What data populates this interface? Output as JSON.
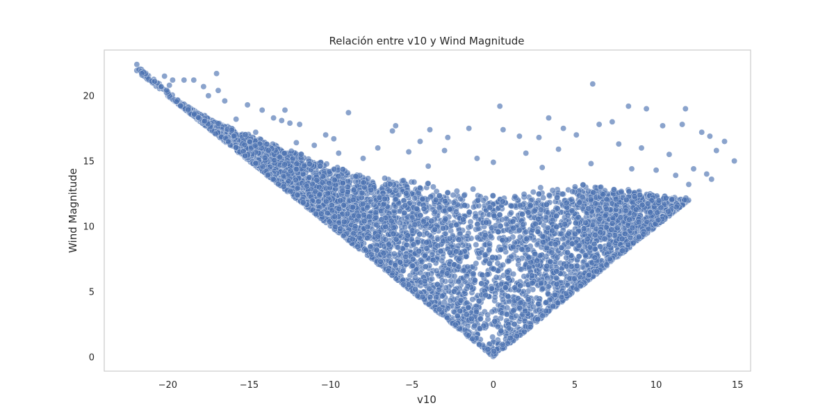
{
  "chart_data": {
    "type": "scatter",
    "title": "Relación entre v10 y Wind Magnitude",
    "xlabel": "v10",
    "ylabel": "Wind Magnitude",
    "xlim": [
      -23.9,
      15.8
    ],
    "ylim": [
      -1.1,
      23.5
    ],
    "xticks": [
      -20,
      -15,
      -10,
      -5,
      0,
      5,
      10,
      15
    ],
    "xtick_labels": [
      "−20",
      "−15",
      "−10",
      "−5",
      "0",
      "5",
      "10",
      "15"
    ],
    "yticks": [
      0,
      5,
      10,
      15,
      20
    ],
    "ytick_labels": [
      "0",
      "5",
      "10",
      "15",
      "20"
    ],
    "grid": false,
    "marker_color": "#4c72b0",
    "marker_alpha": 0.65,
    "marker_edge_color": "#ffffff",
    "series": [
      {
        "points": [
          [
            -21.9,
            22.4
          ],
          [
            -20.2,
            21.5
          ],
          [
            -17.0,
            21.7
          ],
          [
            -20.8,
            21.1
          ],
          [
            -19.7,
            21.2
          ],
          [
            -19.0,
            21.2
          ],
          [
            -18.4,
            21.2
          ],
          [
            -20.4,
            20.7
          ],
          [
            -19.9,
            20.8
          ],
          [
            -17.8,
            20.7
          ],
          [
            -16.9,
            20.4
          ],
          [
            -17.5,
            20.0
          ],
          [
            -16.5,
            19.6
          ],
          [
            -15.1,
            19.3
          ],
          [
            -14.2,
            18.9
          ],
          [
            -12.8,
            18.9
          ],
          [
            -13.5,
            18.3
          ],
          [
            -13.0,
            18.1
          ],
          [
            -12.5,
            17.9
          ],
          [
            -11.9,
            17.8
          ],
          [
            -8.9,
            18.7
          ],
          [
            -10.3,
            17.0
          ],
          [
            -9.8,
            16.7
          ],
          [
            -6.0,
            17.7
          ],
          [
            -6.2,
            17.3
          ],
          [
            -3.9,
            17.4
          ],
          [
            -1.5,
            17.5
          ],
          [
            -2.8,
            16.8
          ],
          [
            -4.5,
            16.5
          ],
          [
            0.4,
            19.2
          ],
          [
            0.6,
            17.4
          ],
          [
            3.4,
            18.3
          ],
          [
            4.3,
            17.5
          ],
          [
            5.1,
            17.0
          ],
          [
            6.1,
            20.9
          ],
          [
            8.3,
            19.2
          ],
          [
            9.4,
            19.0
          ],
          [
            10.4,
            17.7
          ],
          [
            11.8,
            19.0
          ],
          [
            11.6,
            17.8
          ],
          [
            12.8,
            17.2
          ],
          [
            13.3,
            16.9
          ],
          [
            14.2,
            16.5
          ],
          [
            14.8,
            15.0
          ],
          [
            13.7,
            15.8
          ],
          [
            6.5,
            17.8
          ],
          [
            7.3,
            18.0
          ],
          [
            2.8,
            16.8
          ],
          [
            1.6,
            16.9
          ],
          [
            -7.1,
            16.0
          ],
          [
            -11.0,
            16.2
          ],
          [
            -9.5,
            15.6
          ],
          [
            -5.2,
            15.7
          ],
          [
            -3.0,
            15.8
          ],
          [
            -1.0,
            15.2
          ],
          [
            2.0,
            15.6
          ],
          [
            4.0,
            15.9
          ],
          [
            7.7,
            16.3
          ],
          [
            9.1,
            16.0
          ],
          [
            10.8,
            15.5
          ],
          [
            12.3,
            14.4
          ],
          [
            13.1,
            14.0
          ],
          [
            13.4,
            13.6
          ],
          [
            12.0,
            13.2
          ],
          [
            -15.8,
            18.2
          ],
          [
            -14.6,
            17.2
          ],
          [
            -12.1,
            16.4
          ],
          [
            -8.0,
            15.2
          ],
          [
            -4.0,
            14.6
          ],
          [
            0.0,
            14.9
          ],
          [
            3.0,
            14.5
          ],
          [
            6.0,
            14.8
          ],
          [
            8.5,
            14.4
          ],
          [
            10.0,
            14.3
          ],
          [
            11.2,
            13.9
          ]
        ]
      }
    ],
    "envelope": {
      "left_edge": [
        [
          -21.9,
          21.9
        ],
        [
          0.0,
          0.0
        ]
      ],
      "right_edge": [
        [
          0.0,
          0.0
        ],
        [
          12.0,
          12.0
        ]
      ],
      "dense_top_x": [
        -20,
        -17,
        -14,
        -11,
        -8,
        -5,
        -2,
        0,
        3,
        6,
        9,
        12
      ],
      "dense_top_y": [
        20.0,
        18.0,
        16.6,
        15.2,
        14.2,
        13.6,
        13.2,
        13.0,
        13.1,
        13.5,
        12.8,
        12.0
      ]
    }
  }
}
